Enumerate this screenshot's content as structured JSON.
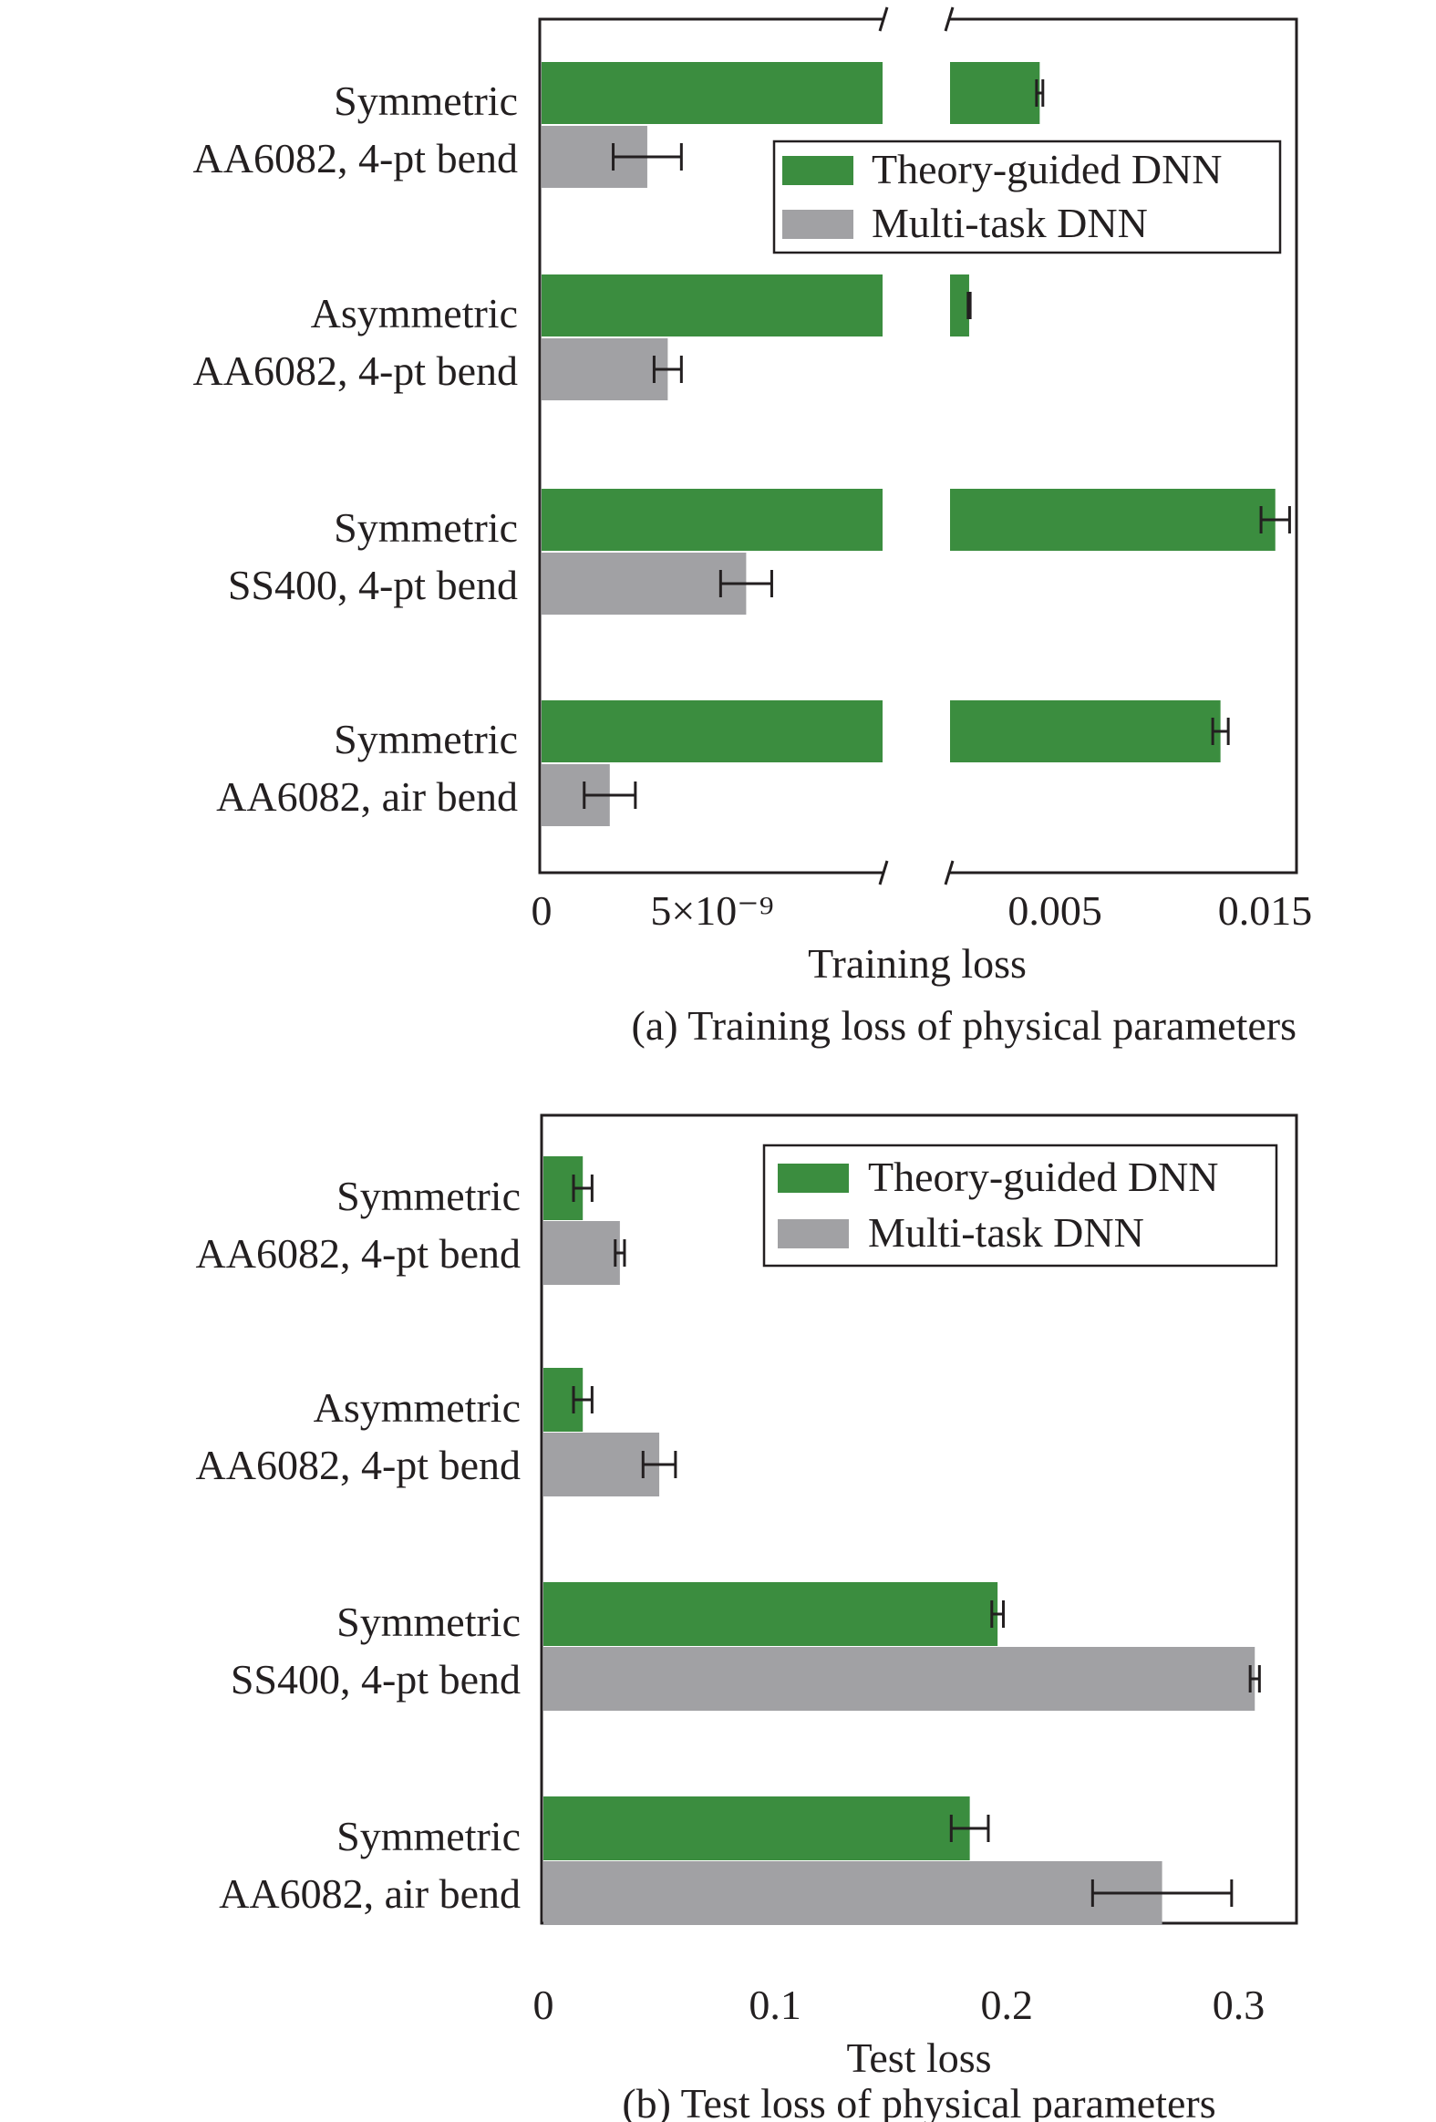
{
  "colors": {
    "theory": "#3b8d3f",
    "multitask": "#a1a1a4",
    "axis": "#231f20",
    "error": "#231f20"
  },
  "chart_data": [
    {
      "type": "bar",
      "orientation": "horizontal",
      "broken_x_axis": true,
      "caption": "(a) Training loss of physical parameters",
      "xlabel": "Training loss",
      "ylabel": "",
      "categories": [
        [
          "Symmetric",
          "AA6082, 4-pt bend"
        ],
        [
          "Asymmetric",
          "AA6082, 4-pt bend"
        ],
        [
          "Symmetric",
          "SS400, 4-pt bend"
        ],
        [
          "Symmetric",
          "AA6082, air bend"
        ]
      ],
      "left_segment": {
        "range": [
          0,
          1e-08
        ],
        "ticks": [
          "0",
          "5×10⁻⁹"
        ]
      },
      "right_segment": {
        "range": [
          0.0,
          0.0165
        ],
        "ticks": [
          "0.005",
          "0.015"
        ]
      },
      "series": [
        {
          "name": "Theory-guided DNN",
          "colorKey": "theory",
          "values": [
            0.00427,
            0.00091,
            0.01549,
            0.01288
          ],
          "errors": [
            0.00015,
            5e-05,
            0.00068,
            0.00037
          ]
        },
        {
          "name": "Multi-task DNN",
          "colorKey": "multitask",
          "values": [
            3.1e-09,
            3.7e-09,
            6e-09,
            2e-09
          ],
          "errors": [
            1e-09,
            4e-10,
            7.5e-10,
            7.5e-10
          ]
        }
      ],
      "legend": {
        "position": "top-right",
        "items": [
          "Theory-guided DNN",
          "Multi-task DNN"
        ]
      }
    },
    {
      "type": "bar",
      "orientation": "horizontal",
      "caption": "(b) Test loss of physical parameters",
      "xlabel": "Test loss",
      "ylabel": "",
      "categories": [
        [
          "Symmetric",
          "AA6082, 4-pt bend"
        ],
        [
          "Asymmetric",
          "AA6082, 4-pt bend"
        ],
        [
          "Symmetric",
          "SS400, 4-pt bend"
        ],
        [
          "Symmetric",
          "AA6082, air bend"
        ]
      ],
      "xlim": [
        0,
        0.325
      ],
      "ticks": [
        "0",
        "0.1",
        "0.2",
        "0.3"
      ],
      "tick_values": [
        0,
        0.1,
        0.2,
        0.3
      ],
      "series": [
        {
          "name": "Theory-guided DNN",
          "colorKey": "theory",
          "values": [
            0.017,
            0.017,
            0.196,
            0.184
          ],
          "errors": [
            0.004,
            0.004,
            0.0025,
            0.008
          ]
        },
        {
          "name": "Multi-task DNN",
          "colorKey": "multitask",
          "values": [
            0.033,
            0.05,
            0.307,
            0.267
          ],
          "errors": [
            0.002,
            0.007,
            0.002,
            0.03
          ]
        }
      ],
      "legend": {
        "position": "top-right",
        "items": [
          "Theory-guided DNN",
          "Multi-task DNN"
        ]
      }
    }
  ]
}
